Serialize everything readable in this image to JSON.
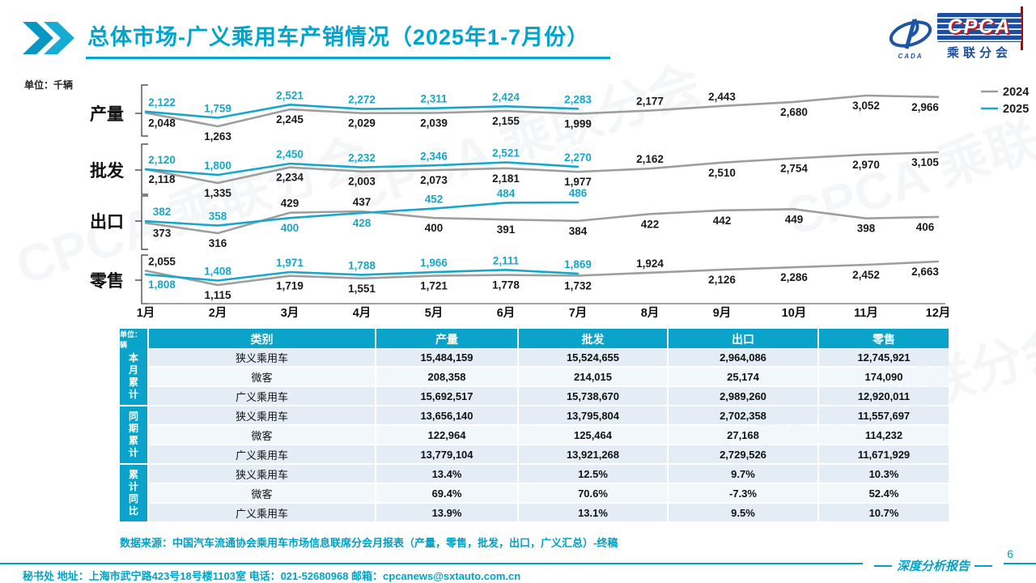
{
  "header": {
    "title": "总体市场-广义乘用车产销情况（2025年1-7月份）",
    "logo": {
      "cpca": "CPCA",
      "cpca_sub": "乘联分会",
      "cada": "CADA"
    }
  },
  "chart_data": {
    "type": "line",
    "unit_label": "单位：千辆",
    "categories": [
      "1月",
      "2月",
      "3月",
      "4月",
      "5月",
      "6月",
      "7月",
      "8月",
      "9月",
      "10月",
      "11月",
      "12月"
    ],
    "legend": [
      {
        "name": "2024",
        "color": "#9E9E9E"
      },
      {
        "name": "2025",
        "color": "#18A7CA"
      }
    ],
    "panels": [
      {
        "title": "产量",
        "key": "production",
        "series": [
          {
            "name": "2024",
            "values": [
              2048,
              1263,
              2245,
              2029,
              2039,
              2155,
              1999,
              2177,
              2443,
              2680,
              3052,
              2966
            ]
          },
          {
            "name": "2025",
            "values": [
              2122,
              1759,
              2521,
              2272,
              2311,
              2424,
              2283
            ]
          }
        ],
        "label_pos_2024_tail": [
          "above",
          "above",
          "below",
          "below",
          "below"
        ]
      },
      {
        "title": "批发",
        "key": "wholesale",
        "series": [
          {
            "name": "2024",
            "values": [
              2118,
              1335,
              2234,
              2003,
              2073,
              2181,
              1977,
              2162,
              2510,
              2754,
              2970,
              3105
            ]
          },
          {
            "name": "2025",
            "values": [
              2120,
              1800,
              2450,
              2232,
              2346,
              2521,
              2270
            ]
          }
        ],
        "label_pos_2024_tail": [
          "above",
          "below",
          "below",
          "below",
          "below"
        ]
      },
      {
        "title": "出口",
        "key": "export",
        "series": [
          {
            "name": "2024",
            "values": [
              373,
              316,
              429,
              437,
              400,
              391,
              384,
              422,
              442,
              449,
              398,
              406
            ]
          },
          {
            "name": "2025",
            "values": [
              382,
              358,
              400,
              428,
              452,
              484,
              486
            ]
          }
        ],
        "label_pos_2024_tail": [
          "below",
          "below",
          "below",
          "below",
          "below"
        ]
      },
      {
        "title": "零售",
        "key": "retail",
        "series": [
          {
            "name": "2024",
            "values": [
              2055,
              1115,
              1719,
              1551,
              1721,
              1778,
              1732,
              1924,
              2126,
              2286,
              2452,
              2663
            ]
          },
          {
            "name": "2025",
            "values": [
              1808,
              1408,
              1971,
              1788,
              1966,
              2111,
              1869
            ]
          }
        ],
        "label_pos_2024_tail": [
          "above",
          "below",
          "below",
          "below",
          "below"
        ]
      }
    ]
  },
  "table": {
    "unit": "单位：辆",
    "columns": [
      "类别",
      "产量",
      "批发",
      "出口",
      "零售"
    ],
    "groups": [
      {
        "label": "本月累计",
        "rows": [
          {
            "category": "狭义乘用车",
            "values": [
              "15,484,159",
              "15,524,655",
              "2,964,086",
              "12,745,921"
            ]
          },
          {
            "category": "微客",
            "values": [
              "208,358",
              "214,015",
              "25,174",
              "174,090"
            ]
          },
          {
            "category": "广义乘用车",
            "values": [
              "15,692,517",
              "15,738,670",
              "2,989,260",
              "12,920,011"
            ]
          }
        ]
      },
      {
        "label": "同期累计",
        "rows": [
          {
            "category": "狭义乘用车",
            "values": [
              "13,656,140",
              "13,795,804",
              "2,702,358",
              "11,557,697"
            ]
          },
          {
            "category": "微客",
            "values": [
              "122,964",
              "125,464",
              "27,168",
              "114,232"
            ]
          },
          {
            "category": "广义乘用车",
            "values": [
              "13,779,104",
              "13,921,268",
              "2,729,526",
              "11,671,929"
            ]
          }
        ]
      },
      {
        "label": "累计同比",
        "rows": [
          {
            "category": "狭义乘用车",
            "values": [
              "13.4%",
              "12.5%",
              "9.7%",
              "10.3%"
            ]
          },
          {
            "category": "微客",
            "values": [
              "69.4%",
              "70.6%",
              "-7.3%",
              "52.4%"
            ]
          },
          {
            "category": "广义乘用车",
            "values": [
              "13.9%",
              "13.1%",
              "9.5%",
              "10.7%"
            ]
          }
        ]
      }
    ]
  },
  "source_note": "数据来源：中国汽车流通协会乘用车市场信息联席分会月报表（产量，零售，批发，出口，广义汇总）-终稿",
  "footer": {
    "contact": "秘书处  地址：上海市武宁路423号18号楼1103室  电话：021-52680968   邮箱：cpcanews@sxtauto.com.cn",
    "tagline": "深度分析报告",
    "page_number": "6"
  },
  "watermark_text": "CPCA 乘联分会"
}
